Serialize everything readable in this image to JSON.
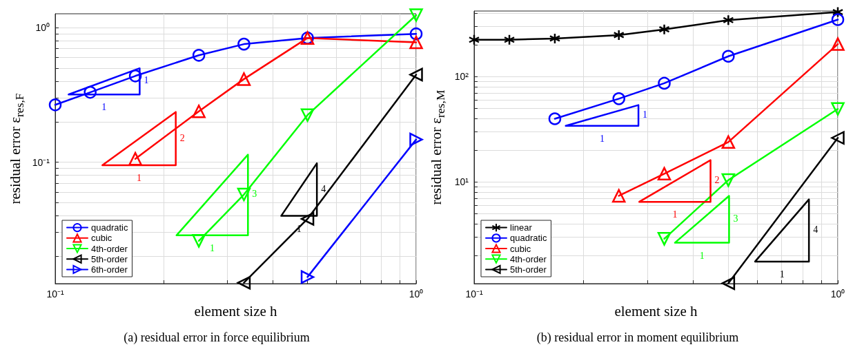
{
  "chart_data": [
    {
      "type": "line",
      "xlabel": "element size h",
      "ylabel": "residual error ε$_{res,F}$",
      "log": "xy",
      "grid": true,
      "legend": "bottom left",
      "line_style": "solid",
      "xlim": [
        0.1,
        1
      ],
      "ylim": [
        0.0125,
        1.27
      ],
      "xticks": [
        {
          "value": 0.1,
          "label": "10⁻¹"
        },
        {
          "value": 0.2,
          "label": null
        },
        {
          "value": 0.3,
          "label": null
        },
        {
          "value": 0.4,
          "label": null
        },
        {
          "value": 0.5,
          "label": null
        },
        {
          "value": 0.6,
          "label": null
        },
        {
          "value": 0.7,
          "label": null
        },
        {
          "value": 0.8,
          "label": null
        },
        {
          "value": 0.9,
          "label": null
        },
        {
          "value": 1,
          "label": "10⁰"
        }
      ],
      "yticks": [
        {
          "value": 0.02,
          "label": null
        },
        {
          "value": 0.03,
          "label": null
        },
        {
          "value": 0.04,
          "label": null
        },
        {
          "value": 0.05,
          "label": null
        },
        {
          "value": 0.06,
          "label": null
        },
        {
          "value": 0.07,
          "label": null
        },
        {
          "value": 0.08,
          "label": null
        },
        {
          "value": 0.09,
          "label": null
        },
        {
          "value": 0.1,
          "label": "10⁻¹"
        },
        {
          "value": 0.2,
          "label": null
        },
        {
          "value": 0.3,
          "label": null
        },
        {
          "value": 0.4,
          "label": null
        },
        {
          "value": 0.5,
          "label": null
        },
        {
          "value": 0.6,
          "label": null
        },
        {
          "value": 0.7,
          "label": null
        },
        {
          "value": 0.8,
          "label": null
        },
        {
          "value": 0.9,
          "label": null
        },
        {
          "value": 1,
          "label": "10⁰"
        }
      ],
      "series": [
        {
          "name": "quadratic",
          "color": "#0000ff",
          "marker": "circle",
          "x": [
            0.1,
            0.125,
            0.1667,
            0.25,
            0.3333,
            0.5,
            1
          ],
          "values": [
            0.267,
            0.331,
            0.438,
            0.624,
            0.755,
            0.839,
            0.9
          ]
        },
        {
          "name": "cubic",
          "color": "#ff0000",
          "marker": "triangle",
          "x": [
            0.1667,
            0.25,
            0.3333,
            0.5,
            1
          ],
          "values": [
            0.106,
            0.239,
            0.415,
            0.839,
            0.778
          ]
        },
        {
          "name": "4th-order",
          "color": "#00ff00",
          "marker": "triangle-down",
          "x": [
            0.25,
            0.3333,
            0.5,
            1
          ],
          "values": [
            0.026,
            0.0575,
            0.224,
            1.24
          ]
        },
        {
          "name": "5th-order",
          "color": "#000000",
          "marker": "triangle-left",
          "x": [
            0.3333,
            0.5,
            1
          ],
          "values": [
            0.0127,
            0.0379,
            0.448
          ]
        },
        {
          "name": "6th-order",
          "color": "#0000ff",
          "marker": "triangle-right",
          "x": [
            0.5,
            1
          ],
          "values": [
            0.014,
            0.1475
          ]
        }
      ],
      "annotations": [
        "1",
        "1",
        "2",
        "1",
        "3",
        "1",
        "4",
        "1",
        "(a) residual error in force equilibrium"
      ]
    },
    {
      "type": "line",
      "xlabel": "element size h",
      "ylabel": "residual error ε$_{res,M}$",
      "log": "xy",
      "grid": true,
      "legend": "bottom left",
      "line_style": "solid",
      "xlim": [
        0.1,
        1
      ],
      "ylim": [
        1.08,
        420
      ],
      "xticks": [
        {
          "value": 0.1,
          "label": "10⁻¹"
        },
        {
          "value": 0.2,
          "label": null
        },
        {
          "value": 0.3,
          "label": null
        },
        {
          "value": 0.4,
          "label": null
        },
        {
          "value": 0.5,
          "label": null
        },
        {
          "value": 0.6,
          "label": null
        },
        {
          "value": 0.7,
          "label": null
        },
        {
          "value": 0.8,
          "label": null
        },
        {
          "value": 0.9,
          "label": null
        },
        {
          "value": 1,
          "label": "10⁰"
        }
      ],
      "yticks": [
        {
          "value": 2,
          "label": null
        },
        {
          "value": 3,
          "label": null
        },
        {
          "value": 4,
          "label": null
        },
        {
          "value": 5,
          "label": null
        },
        {
          "value": 6,
          "label": null
        },
        {
          "value": 7,
          "label": null
        },
        {
          "value": 8,
          "label": null
        },
        {
          "value": 9,
          "label": null
        },
        {
          "value": 10,
          "label": "10¹"
        },
        {
          "value": 20,
          "label": null
        },
        {
          "value": 30,
          "label": null
        },
        {
          "value": 40,
          "label": null
        },
        {
          "value": 50,
          "label": null
        },
        {
          "value": 60,
          "label": null
        },
        {
          "value": 70,
          "label": null
        },
        {
          "value": 80,
          "label": null
        },
        {
          "value": 90,
          "label": null
        },
        {
          "value": 100,
          "label": "10²"
        },
        {
          "value": 200,
          "label": null
        },
        {
          "value": 300,
          "label": null
        },
        {
          "value": 400,
          "label": null
        }
      ],
      "series": [
        {
          "name": "linear",
          "color": "#000000",
          "marker": "cross",
          "x": [
            0.1,
            0.125,
            0.1667,
            0.25,
            0.3333,
            0.5,
            1
          ],
          "values": [
            224,
            224,
            230,
            248,
            281,
            344,
            410
          ]
        },
        {
          "name": "quadratic",
          "color": "#0000ff",
          "marker": "circle",
          "x": [
            0.1667,
            0.25,
            0.3333,
            0.5,
            1
          ],
          "values": [
            39.8,
            61.7,
            86.5,
            156,
            348
          ]
        },
        {
          "name": "cubic",
          "color": "#ff0000",
          "marker": "triangle",
          "x": [
            0.25,
            0.3333,
            0.5,
            1
          ],
          "values": [
            7.38,
            11.95,
            23.9,
            203.6
          ]
        },
        {
          "name": "4th-order",
          "color": "#00ff00",
          "marker": "triangle-down",
          "x": [
            0.3333,
            0.5,
            1
          ],
          "values": [
            2.88,
            10.4,
            49.3
          ]
        },
        {
          "name": "5th-order",
          "color": "#000000",
          "marker": "triangle-left",
          "x": [
            0.5,
            1
          ],
          "values": [
            1.09,
            26.2
          ]
        }
      ],
      "annotations": [
        "1",
        "1",
        "2",
        "1",
        "3",
        "1",
        "4",
        "1",
        "(b) residual error in moment equilibrium"
      ]
    }
  ]
}
